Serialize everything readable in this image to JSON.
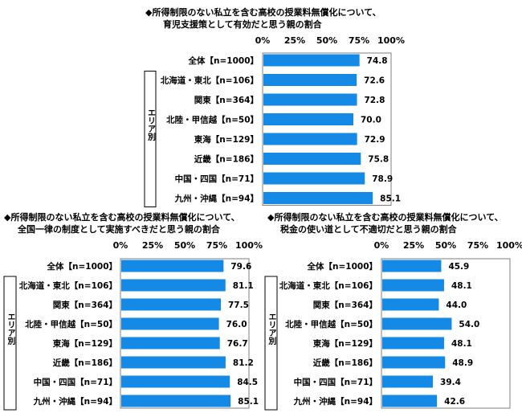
{
  "charts": [
    {
      "title_line1": "◆所得制限のない私立を含む高校の授業料無償化について、",
      "title_line2": "育児支援策として有効だと思う親の割合",
      "group_label": "エリア別",
      "ticks": [
        "0%",
        "25%",
        "50%",
        "75%",
        "100%"
      ],
      "rows": [
        {
          "label": "全体【n=1000】",
          "value": "74.8"
        },
        {
          "label": "北海道・東北【n=106】",
          "value": "72.6"
        },
        {
          "label": "関東【n=364】",
          "value": "72.8"
        },
        {
          "label": "北陸・甲信越【n=50】",
          "value": "70.0"
        },
        {
          "label": "東海【n=129】",
          "value": "72.9"
        },
        {
          "label": "近畿【n=186】",
          "value": "75.8"
        },
        {
          "label": "中国・四国【n=71】",
          "value": "78.9"
        },
        {
          "label": "九州・沖縄【n=94】",
          "value": "85.1"
        }
      ]
    },
    {
      "title_line1": "◆所得制限のない私立を含む高校の授業料無償化について、",
      "title_line2": "全国一律の制度として実施すべきだと思う親の割合",
      "group_label": "エリア別",
      "ticks": [
        "0%",
        "25%",
        "50%",
        "75%",
        "100%"
      ],
      "rows": [
        {
          "label": "全体【n=1000】",
          "value": "79.6"
        },
        {
          "label": "北海道・東北【n=106】",
          "value": "81.1"
        },
        {
          "label": "関東【n=364】",
          "value": "77.5"
        },
        {
          "label": "北陸・甲信越【n=50】",
          "value": "76.0"
        },
        {
          "label": "東海【n=129】",
          "value": "76.7"
        },
        {
          "label": "近畿【n=186】",
          "value": "81.2"
        },
        {
          "label": "中国・四国【n=71】",
          "value": "84.5"
        },
        {
          "label": "九州・沖縄【n=94】",
          "value": "85.1"
        }
      ]
    },
    {
      "title_line1": "◆所得制限のない私立を含む高校の授業料無償化について、",
      "title_line2": "税金の使い道として不適切だと思う親の割合",
      "group_label": "エリア別",
      "ticks": [
        "0%",
        "25%",
        "50%",
        "75%",
        "100%"
      ],
      "rows": [
        {
          "label": "全体【n=1000】",
          "value": "45.9"
        },
        {
          "label": "北海道・東北【n=106】",
          "value": "48.1"
        },
        {
          "label": "関東【n=364】",
          "value": "44.0"
        },
        {
          "label": "北陸・甲信越【n=50】",
          "value": "54.0"
        },
        {
          "label": "東海【n=129】",
          "value": "48.1"
        },
        {
          "label": "近畿【n=186】",
          "value": "48.9"
        },
        {
          "label": "中国・四国【n=71】",
          "value": "39.4"
        },
        {
          "label": "九州・沖縄【n=94】",
          "value": "42.6"
        }
      ]
    }
  ],
  "colors": {
    "bar": "#1589e6",
    "axis": "#7f7f7f"
  },
  "chart_data": [
    {
      "type": "bar",
      "orientation": "horizontal",
      "title": "◆所得制限のない私立を含む高校の授業料無償化について、育児支援策として有効だと思う親の割合",
      "categories": [
        "全体【n=1000】",
        "北海道・東北【n=106】",
        "関東【n=364】",
        "北陸・甲信越【n=50】",
        "東海【n=129】",
        "近畿【n=186】",
        "中国・四国【n=71】",
        "九州・沖縄【n=94】"
      ],
      "values": [
        74.8,
        72.6,
        72.8,
        70.0,
        72.9,
        75.8,
        78.9,
        85.1
      ],
      "xlim": [
        0,
        100
      ],
      "grid": false
    },
    {
      "type": "bar",
      "orientation": "horizontal",
      "title": "◆所得制限のない私立を含む高校の授業料無償化について、全国一律の制度として実施すべきだと思う親の割合",
      "categories": [
        "全体【n=1000】",
        "北海道・東北【n=106】",
        "関東【n=364】",
        "北陸・甲信越【n=50】",
        "東海【n=129】",
        "近畿【n=186】",
        "中国・四国【n=71】",
        "九州・沖縄【n=94】"
      ],
      "values": [
        79.6,
        81.1,
        77.5,
        76.0,
        76.7,
        81.2,
        84.5,
        85.1
      ],
      "xlim": [
        0,
        100
      ],
      "grid": false
    },
    {
      "type": "bar",
      "orientation": "horizontal",
      "title": "◆所得制限のない私立を含む高校の授業料無償化について、税金の使い道として不適切だと思う親の割合",
      "categories": [
        "全体【n=1000】",
        "北海道・東北【n=106】",
        "関東【n=364】",
        "北陸・甲信越【n=50】",
        "東海【n=129】",
        "近畿【n=186】",
        "中国・四国【n=71】",
        "九州・沖縄【n=94】"
      ],
      "values": [
        45.9,
        48.1,
        44.0,
        54.0,
        48.1,
        48.9,
        39.4,
        42.6
      ],
      "xlim": [
        0,
        100
      ],
      "grid": false
    }
  ]
}
